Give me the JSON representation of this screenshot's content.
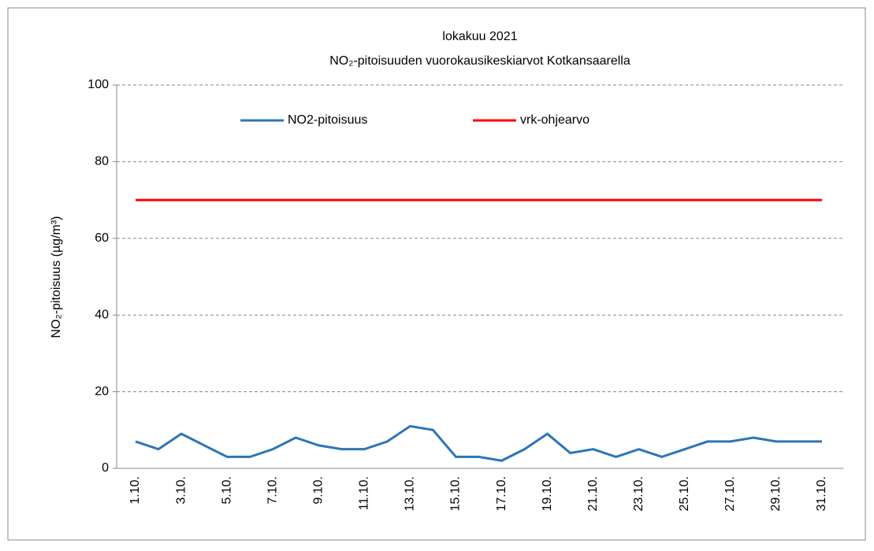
{
  "chart_data": {
    "type": "line",
    "title": "lokakuu 2021",
    "subtitle": "NO₂-pitoisuuden vuorokausikeskiarvot Kotkansaarella",
    "y_label": "NO₂-pitoisuus (µg/m³)",
    "categories": [
      "1.10.",
      null,
      "3.10.",
      null,
      "5.10.",
      null,
      "7.10.",
      null,
      "9.10.",
      null,
      "11.10.",
      null,
      "13.10.",
      null,
      "15.10.",
      null,
      "17.10.",
      null,
      "19.10.",
      null,
      "21.10.",
      null,
      "23.10.",
      null,
      "25.10.",
      null,
      "27.10.",
      null,
      "29.10.",
      null,
      "31.10."
    ],
    "series": [
      {
        "name": "NO2-pitoisuus",
        "color": "#2e75b6",
        "values": [
          7,
          5,
          9,
          6,
          3,
          3,
          5,
          8,
          6,
          5,
          5,
          7,
          11,
          10,
          3,
          3,
          2,
          5,
          9,
          4,
          5,
          3,
          5,
          3,
          5,
          7,
          7,
          8,
          7,
          7,
          7
        ]
      },
      {
        "name": "vrk-ohjearvo",
        "color": "#ff0000",
        "values": [
          70,
          70,
          70,
          70,
          70,
          70,
          70,
          70,
          70,
          70,
          70,
          70,
          70,
          70,
          70,
          70,
          70,
          70,
          70,
          70,
          70,
          70,
          70,
          70,
          70,
          70,
          70,
          70,
          70,
          70,
          70
        ]
      }
    ],
    "ylim": [
      0,
      100
    ],
    "yticks": [
      0,
      20,
      40,
      60,
      80,
      100
    ],
    "grid": true,
    "legend": "top"
  }
}
